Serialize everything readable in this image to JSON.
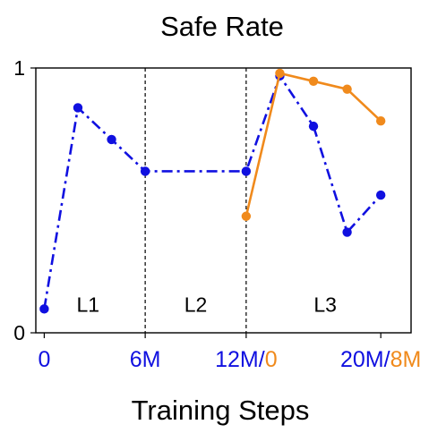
{
  "chart_data": {
    "type": "line",
    "title": "Safe Rate",
    "xlabel": "Training Steps",
    "ylabel": "",
    "ylim": [
      0,
      1
    ],
    "xlim": [
      -0.5,
      21.8
    ],
    "y_tick_labels": [
      "0",
      "1"
    ],
    "x_tick_labels": [
      {
        "parts": [
          {
            "text": "0",
            "color": "#1010e0"
          }
        ],
        "x": 0
      },
      {
        "parts": [
          {
            "text": "6M",
            "color": "#1010e0"
          }
        ],
        "x": 6
      },
      {
        "parts": [
          {
            "text": "12M/",
            "color": "#1010e0"
          },
          {
            "text": "0",
            "color": "#f08a1c"
          }
        ],
        "x": 12
      },
      {
        "parts": [
          {
            "text": "20M/",
            "color": "#1010e0"
          },
          {
            "text": "8M",
            "color": "#f08a1c"
          }
        ],
        "x": 20
      }
    ],
    "phase_dividers": [
      6,
      12
    ],
    "phase_labels": [
      {
        "text": "L1",
        "x": 2.6,
        "y": 0.08
      },
      {
        "text": "L2",
        "x": 9.0,
        "y": 0.08
      },
      {
        "text": "L3",
        "x": 16.7,
        "y": 0.08
      }
    ],
    "series": [
      {
        "color": "#1010e0",
        "line": "dashdot",
        "x": [
          0,
          2,
          4,
          6,
          12,
          14,
          16,
          18,
          20
        ],
        "y": [
          0.09,
          0.85,
          0.73,
          0.61,
          0.61,
          0.97,
          0.78,
          0.38,
          0.52
        ]
      },
      {
        "color": "#f08a1c",
        "line": "solid",
        "x": [
          12,
          14,
          16,
          18,
          20
        ],
        "y": [
          0.44,
          0.98,
          0.95,
          0.92,
          0.8
        ]
      }
    ]
  }
}
